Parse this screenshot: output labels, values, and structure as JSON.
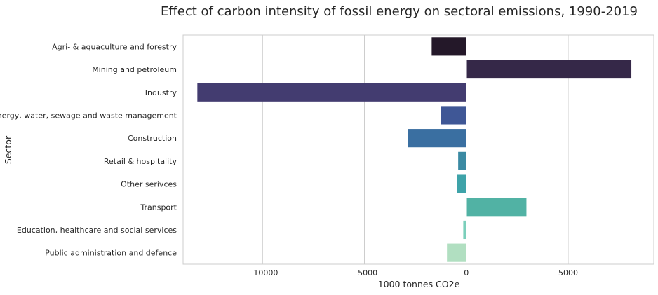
{
  "chart_data": {
    "type": "bar",
    "orientation": "horizontal",
    "title": "Effect of carbon intensity of fossil energy on sectoral emissions, 1990-2019",
    "xlabel": "1000 tonnes CO2e",
    "ylabel": "Sector",
    "xlim": [
      -13900,
      9200
    ],
    "xticks": [
      -10000,
      -5000,
      0,
      5000
    ],
    "xtick_labels": [
      "−10000",
      "−5000",
      "0",
      "5000"
    ],
    "grid": "vertical",
    "categories": [
      "Agri- & aquaculture and forestry",
      "Mining and petroleum",
      "Industry",
      "Energy, water, sewage and waste management",
      "Construction",
      "Retail & hospitality",
      "Other serivces",
      "Transport",
      "Education, healthcare and social services",
      "Public administration and defence"
    ],
    "values": [
      -1700,
      8100,
      -13200,
      -1250,
      -2850,
      -400,
      -450,
      2950,
      -150,
      -950
    ],
    "colors": [
      "#241829",
      "#352848",
      "#433c70",
      "#3f5796",
      "#3a6fa1",
      "#3b8aa3",
      "#3ea3a9",
      "#51b2a4",
      "#7bcfbb",
      "#b1dfc1"
    ]
  }
}
